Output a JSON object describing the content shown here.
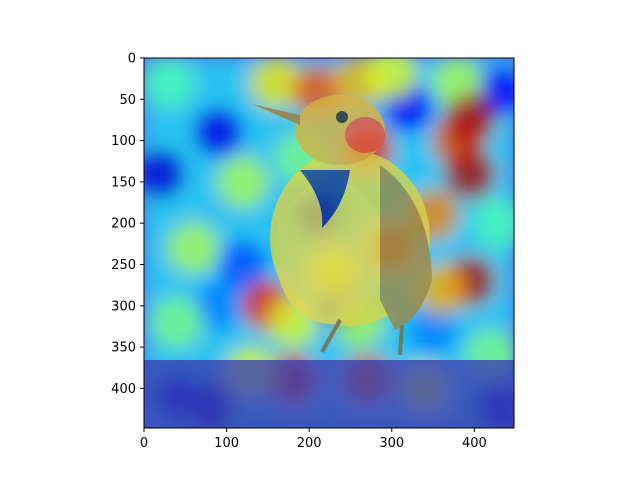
{
  "chart_data": {
    "type": "heatmap",
    "description_visible": false,
    "title": "",
    "xlabel": "",
    "ylabel": "",
    "xlim": [
      0,
      448
    ],
    "ylim": [
      448,
      0
    ],
    "x_ticks": [
      0,
      100,
      200,
      300,
      400
    ],
    "y_ticks": [
      0,
      50,
      100,
      150,
      200,
      250,
      300,
      350,
      400
    ],
    "grid": false,
    "colormap": "jet",
    "image_size": [
      448,
      448
    ],
    "heat_cells": [
      {
        "x": 160,
        "y": 30,
        "v": 0.65
      },
      {
        "x": 210,
        "y": 40,
        "v": 0.8
      },
      {
        "x": 260,
        "y": 30,
        "v": 0.7
      },
      {
        "x": 300,
        "y": 20,
        "v": 0.6
      },
      {
        "x": 380,
        "y": 30,
        "v": 0.55
      },
      {
        "x": 30,
        "y": 30,
        "v": 0.45
      },
      {
        "x": 120,
        "y": 150,
        "v": 0.55
      },
      {
        "x": 190,
        "y": 120,
        "v": 0.5
      },
      {
        "x": 270,
        "y": 110,
        "v": 0.85
      },
      {
        "x": 300,
        "y": 230,
        "v": 0.8
      },
      {
        "x": 350,
        "y": 190,
        "v": 0.75
      },
      {
        "x": 380,
        "y": 100,
        "v": 0.8
      },
      {
        "x": 395,
        "y": 75,
        "v": 0.95
      },
      {
        "x": 395,
        "y": 140,
        "v": 0.95
      },
      {
        "x": 395,
        "y": 270,
        "v": 0.95
      },
      {
        "x": 360,
        "y": 280,
        "v": 0.7
      },
      {
        "x": 150,
        "y": 300,
        "v": 0.85
      },
      {
        "x": 180,
        "y": 320,
        "v": 0.6
      },
      {
        "x": 60,
        "y": 230,
        "v": 0.55
      },
      {
        "x": 40,
        "y": 320,
        "v": 0.5
      },
      {
        "x": 230,
        "y": 260,
        "v": 0.65
      },
      {
        "x": 260,
        "y": 320,
        "v": 0.55
      },
      {
        "x": 180,
        "y": 390,
        "v": 0.85
      },
      {
        "x": 270,
        "y": 390,
        "v": 0.8
      },
      {
        "x": 340,
        "y": 400,
        "v": 0.6
      },
      {
        "x": 130,
        "y": 380,
        "v": 0.6
      },
      {
        "x": 420,
        "y": 360,
        "v": 0.5
      },
      {
        "x": 430,
        "y": 200,
        "v": 0.45
      }
    ],
    "cold_cells": [
      {
        "x": 20,
        "y": 140,
        "v": 0.08
      },
      {
        "x": 90,
        "y": 90,
        "v": 0.1
      },
      {
        "x": 80,
        "y": 420,
        "v": 0.05
      },
      {
        "x": 40,
        "y": 410,
        "v": 0.1
      },
      {
        "x": 430,
        "y": 420,
        "v": 0.08
      },
      {
        "x": 320,
        "y": 60,
        "v": 0.12
      },
      {
        "x": 210,
        "y": 190,
        "v": 0.1
      },
      {
        "x": 240,
        "y": 300,
        "v": 0.15
      },
      {
        "x": 430,
        "y": 40,
        "v": 0.12
      },
      {
        "x": 90,
        "y": 300,
        "v": 0.25
      },
      {
        "x": 120,
        "y": 250,
        "v": 0.2
      },
      {
        "x": 350,
        "y": 330,
        "v": 0.25
      }
    ]
  }
}
